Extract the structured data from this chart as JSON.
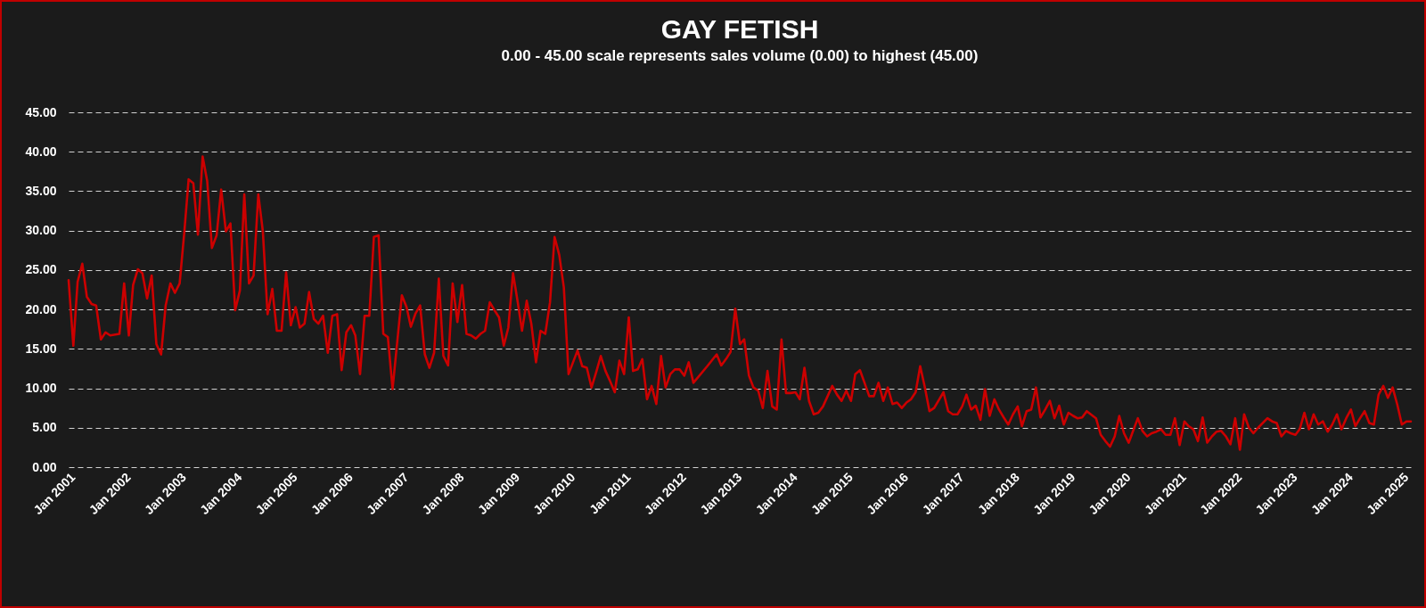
{
  "chart_data": {
    "type": "line",
    "title": "GAY FETISH",
    "subtitle": "0.00 - 45.00 scale represents sales volume (0.00) to highest (45.00)",
    "x": [
      "2001-01",
      "2001-02",
      "2001-03",
      "2001-04",
      "2001-05",
      "2001-06",
      "2001-07",
      "2001-08",
      "2001-09",
      "2001-10",
      "2001-12",
      "2002-01",
      "2002-02",
      "2002-03",
      "2002-04",
      "2002-05",
      "2002-06",
      "2002-07",
      "2002-08",
      "2002-09",
      "2002-10",
      "2002-11",
      "2002-12",
      "2003-01",
      "2003-02",
      "2003-03",
      "2003-04",
      "2003-05",
      "2003-06",
      "2003-07",
      "2003-08",
      "2003-09",
      "2003-10",
      "2003-11",
      "2003-12",
      "2004-01",
      "2004-02",
      "2004-03",
      "2004-04",
      "2004-05",
      "2004-06",
      "2004-07",
      "2004-08",
      "2004-09",
      "2004-10",
      "2004-11",
      "2004-12",
      "2005-01",
      "2005-02",
      "2005-03",
      "2005-04",
      "2005-05",
      "2005-06",
      "2005-07",
      "2005-08",
      "2005-09",
      "2005-10",
      "2005-11",
      "2005-12",
      "2006-01",
      "2006-02",
      "2006-03",
      "2006-04",
      "2006-05",
      "2006-06",
      "2006-07",
      "2006-08",
      "2006-09",
      "2006-10",
      "2006-11",
      "2007-01",
      "2007-02",
      "2007-03",
      "2007-04",
      "2007-05",
      "2007-06",
      "2007-07",
      "2007-08",
      "2007-09",
      "2007-10",
      "2007-11",
      "2007-12",
      "2008-01",
      "2008-02",
      "2008-03",
      "2008-04",
      "2008-05",
      "2008-06",
      "2008-07",
      "2008-08",
      "2008-09",
      "2008-10",
      "2008-11",
      "2008-12",
      "2009-01",
      "2009-02",
      "2009-03",
      "2009-04",
      "2009-05",
      "2009-06",
      "2009-07",
      "2009-08",
      "2009-09",
      "2009-10",
      "2009-11",
      "2009-12",
      "2010-01",
      "2010-03",
      "2010-04",
      "2010-05",
      "2010-06",
      "2010-07",
      "2010-08",
      "2010-09",
      "2010-10",
      "2010-11",
      "2010-12",
      "2011-01",
      "2011-02",
      "2011-03",
      "2011-04",
      "2011-05",
      "2011-06",
      "2011-07",
      "2011-08",
      "2011-09",
      "2011-10",
      "2011-11",
      "2011-12",
      "2012-01",
      "2012-02",
      "2012-03",
      "2012-04",
      "2012-07",
      "2012-09",
      "2012-10",
      "2012-11",
      "2012-12",
      "2013-01",
      "2013-02",
      "2013-03",
      "2013-04",
      "2013-05",
      "2013-06",
      "2013-07",
      "2013-08",
      "2013-09",
      "2013-10",
      "2013-11",
      "2013-12",
      "2014-01",
      "2014-02",
      "2014-03",
      "2014-04",
      "2014-05",
      "2014-06",
      "2014-07",
      "2014-08",
      "2014-10",
      "2014-11",
      "2014-12",
      "2015-01",
      "2015-02",
      "2015-03",
      "2015-04",
      "2015-05",
      "2015-06",
      "2015-07",
      "2015-08",
      "2015-09",
      "2015-10",
      "2015-11",
      "2015-12",
      "2016-01",
      "2016-02",
      "2016-03",
      "2016-04",
      "2016-05",
      "2016-06",
      "2016-07",
      "2016-08",
      "2016-10",
      "2016-11",
      "2016-12",
      "2017-01",
      "2017-02",
      "2017-03",
      "2017-04",
      "2017-05",
      "2017-06",
      "2017-07",
      "2017-08",
      "2017-09",
      "2017-10",
      "2017-11",
      "2017-12",
      "2018-01",
      "2018-02",
      "2018-03",
      "2018-04",
      "2018-05",
      "2018-06",
      "2018-07",
      "2018-08",
      "2018-09",
      "2018-10",
      "2018-11",
      "2018-12",
      "2019-01",
      "2019-02",
      "2019-03",
      "2019-04",
      "2019-05",
      "2019-07",
      "2019-08",
      "2019-09",
      "2019-10",
      "2019-11",
      "2019-12",
      "2020-01",
      "2020-02",
      "2020-03",
      "2020-04",
      "2020-05",
      "2020-06",
      "2020-07",
      "2020-08",
      "2020-09",
      "2020-10",
      "2020-11",
      "2020-12",
      "2021-01",
      "2021-02",
      "2021-03",
      "2021-04",
      "2021-05",
      "2021-06",
      "2021-07",
      "2021-08",
      "2021-09",
      "2021-10",
      "2021-11",
      "2021-12",
      "2022-01",
      "2022-02",
      "2022-03",
      "2022-04",
      "2022-05",
      "2022-06",
      "2022-08",
      "2022-09",
      "2022-10",
      "2022-11",
      "2022-12",
      "2023-01",
      "2023-02",
      "2023-03",
      "2023-04",
      "2023-05",
      "2023-06",
      "2023-07",
      "2023-08",
      "2023-09",
      "2023-10",
      "2023-11",
      "2023-12",
      "2024-01",
      "2024-02",
      "2024-03",
      "2024-04",
      "2024-05",
      "2024-06",
      "2024-07",
      "2024-08",
      "2024-09",
      "2024-10",
      "2024-11",
      "2024-12",
      "2025-01",
      "2025-02",
      "2025-03"
    ],
    "series": [
      {
        "color": "#cc0000",
        "values": [
          23.7,
          15.4,
          23.5,
          25.8,
          21.6,
          20.7,
          20.5,
          16.2,
          17.1,
          16.7,
          16.9,
          23.3,
          16.7,
          23.1,
          25.1,
          24.6,
          21.4,
          24.3,
          15.6,
          14.3,
          20.5,
          23.3,
          22.1,
          23.3,
          29.9,
          36.5,
          36.0,
          29.5,
          39.4,
          36.3,
          27.8,
          29.4,
          35.2,
          29.9,
          30.9,
          19.9,
          22.4,
          34.6,
          23.3,
          24.3,
          34.6,
          29.9,
          19.4,
          22.6,
          17.3,
          17.3,
          24.7,
          18.0,
          20.3,
          17.7,
          18.2,
          22.2,
          18.8,
          18.2,
          19.2,
          14.5,
          19.2,
          19.4,
          12.3,
          17.1,
          18.0,
          16.7,
          11.8,
          19.2,
          19.2,
          29.2,
          29.4,
          16.9,
          16.5,
          9.9,
          21.8,
          20.3,
          17.8,
          19.5,
          20.5,
          14.3,
          12.6,
          14.5,
          23.9,
          14.1,
          12.9,
          23.3,
          18.4,
          23.1,
          16.9,
          16.7,
          16.3,
          16.9,
          17.3,
          20.9,
          19.9,
          19.0,
          15.4,
          17.7,
          24.6,
          20.9,
          17.3,
          21.1,
          18.2,
          13.3,
          17.3,
          16.9,
          20.9,
          29.2,
          26.9,
          22.8,
          11.8,
          14.8,
          12.8,
          12.6,
          10.1,
          12.0,
          14.1,
          12.2,
          10.9,
          9.5,
          13.5,
          11.8,
          19.0,
          12.2,
          12.4,
          13.7,
          8.6,
          10.3,
          8.0,
          14.1,
          10.1,
          11.8,
          12.4,
          12.4,
          11.6,
          13.3,
          10.7,
          12.8,
          14.3,
          12.9,
          13.7,
          14.6,
          20.1,
          15.6,
          16.2,
          11.6,
          10.1,
          9.7,
          7.5,
          12.2,
          7.7,
          7.3,
          16.2,
          9.4,
          9.4,
          9.5,
          8.6,
          12.6,
          8.4,
          6.7,
          6.9,
          7.7,
          10.3,
          9.2,
          8.4,
          9.7,
          8.4,
          11.8,
          12.3,
          10.7,
          9.0,
          9.0,
          10.7,
          8.4,
          10.1,
          8.0,
          8.2,
          7.5,
          8.2,
          8.6,
          9.5,
          12.8,
          10.1,
          7.1,
          7.5,
          9.5,
          7.1,
          6.7,
          6.7,
          7.7,
          9.2,
          7.3,
          7.8,
          6.0,
          9.9,
          6.5,
          8.6,
          7.3,
          6.3,
          5.4,
          6.7,
          7.7,
          5.2,
          7.1,
          7.3,
          10.1,
          6.3,
          7.3,
          8.4,
          6.2,
          7.8,
          5.4,
          6.9,
          6.5,
          6.2,
          6.3,
          7.1,
          6.2,
          4.1,
          3.3,
          2.6,
          3.9,
          6.5,
          4.3,
          3.1,
          4.6,
          6.2,
          4.6,
          3.9,
          4.3,
          4.5,
          4.8,
          4.1,
          4.1,
          6.2,
          2.8,
          5.8,
          5.2,
          4.8,
          3.3,
          6.3,
          3.1,
          3.9,
          4.5,
          4.6,
          3.9,
          2.9,
          6.2,
          2.2,
          6.7,
          5.0,
          4.3,
          5.0,
          6.2,
          5.8,
          5.6,
          3.9,
          4.6,
          4.3,
          4.1,
          4.8,
          6.9,
          4.8,
          6.7,
          5.4,
          5.8,
          4.5,
          5.4,
          6.7,
          4.8,
          6.2,
          7.3,
          5.2,
          6.2,
          7.1,
          5.6,
          5.4,
          9.2,
          10.3,
          8.8,
          10.1,
          8.0,
          5.4,
          5.8,
          5.8
        ]
      }
    ],
    "xlim": [
      "2001-01",
      "2025-03"
    ],
    "xticks": [
      {
        "value": "2001-01",
        "label": "Jan 2001"
      },
      {
        "value": "2002-01",
        "label": "Jan 2002"
      },
      {
        "value": "2003-01",
        "label": "Jan 2003"
      },
      {
        "value": "2004-01",
        "label": "Jan 2004"
      },
      {
        "value": "2005-01",
        "label": "Jan 2005"
      },
      {
        "value": "2006-01",
        "label": "Jan 2006"
      },
      {
        "value": "2007-01",
        "label": "Jan 2007"
      },
      {
        "value": "2008-01",
        "label": "Jan 2008"
      },
      {
        "value": "2009-01",
        "label": "Jan 2009"
      },
      {
        "value": "2010-01",
        "label": "Jan 2010"
      },
      {
        "value": "2011-01",
        "label": "Jan 2011"
      },
      {
        "value": "2012-01",
        "label": "Jan 2012"
      },
      {
        "value": "2013-01",
        "label": "Jan 2013"
      },
      {
        "value": "2014-01",
        "label": "Jan 2014"
      },
      {
        "value": "2015-01",
        "label": "Jan 2015"
      },
      {
        "value": "2016-01",
        "label": "Jan 2016"
      },
      {
        "value": "2017-01",
        "label": "Jan 2017"
      },
      {
        "value": "2018-01",
        "label": "Jan 2018"
      },
      {
        "value": "2019-01",
        "label": "Jan 2019"
      },
      {
        "value": "2020-01",
        "label": "Jan 2020"
      },
      {
        "value": "2021-01",
        "label": "Jan 2021"
      },
      {
        "value": "2022-01",
        "label": "Jan 2022"
      },
      {
        "value": "2023-01",
        "label": "Jan 2023"
      },
      {
        "value": "2024-01",
        "label": "Jan 2024"
      },
      {
        "value": "2025-01",
        "label": "Jan 2025"
      }
    ],
    "ylim": [
      0,
      45
    ],
    "yticks": [
      {
        "value": 0,
        "label": "0.00"
      },
      {
        "value": 5,
        "label": "5.00"
      },
      {
        "value": 10,
        "label": "10.00"
      },
      {
        "value": 15,
        "label": "15.00"
      },
      {
        "value": 20,
        "label": "20.00"
      },
      {
        "value": 25,
        "label": "25.00"
      },
      {
        "value": 30,
        "label": "30.00"
      },
      {
        "value": 35,
        "label": "35.00"
      },
      {
        "value": 40,
        "label": "40.00"
      },
      {
        "value": 45,
        "label": "45.00"
      }
    ],
    "grid": "y",
    "line_style": "solid"
  }
}
